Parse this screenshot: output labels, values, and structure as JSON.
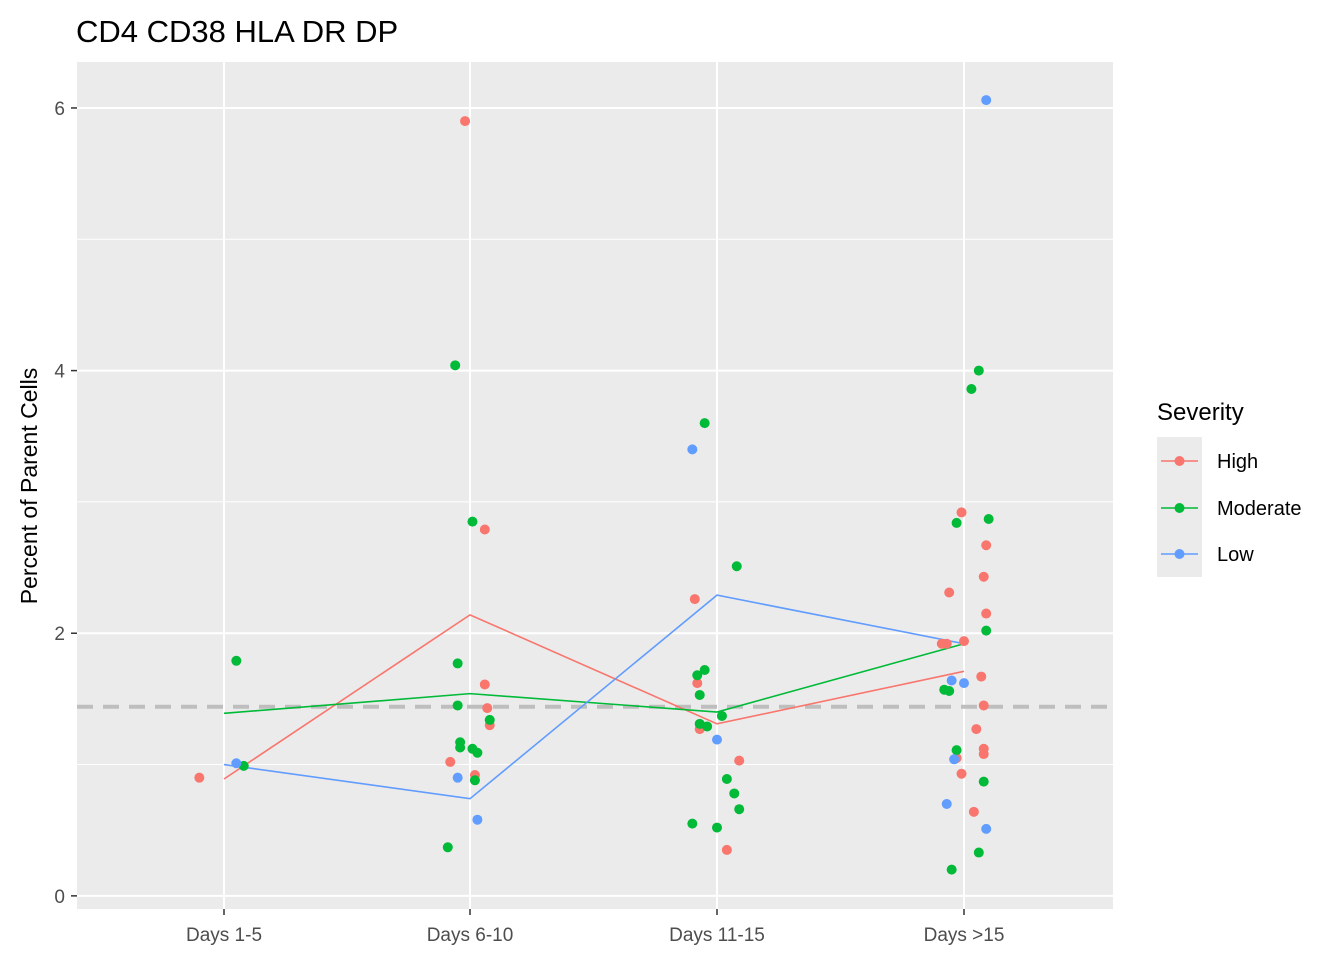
{
  "chart_data": {
    "type": "scatter",
    "title": "CD4 CD38 HLA DR DP",
    "xlabel": "",
    "ylabel": "Percent of Parent Cells",
    "categories": [
      "Days 1-5",
      "Days 6-10",
      "Days 11-15",
      "Days >15"
    ],
    "ylim": [
      -0.1,
      6.35
    ],
    "yticks": [
      0,
      2,
      4,
      6
    ],
    "grid": true,
    "reference_line": {
      "y": 1.44,
      "style": "dashed",
      "color": "#bebebe"
    },
    "legend": {
      "title": "Severity",
      "position": "right"
    },
    "series": [
      {
        "name": "High",
        "color": "#F8766D",
        "mean_line": [
          0.89,
          2.14,
          1.31,
          1.71
        ],
        "points": [
          {
            "x": "Days 1-5",
            "offset": -0.1,
            "y": 0.9
          },
          {
            "x": "Days 6-10",
            "offset": -0.02,
            "y": 5.9
          },
          {
            "x": "Days 6-10",
            "offset": 0.06,
            "y": 2.79
          },
          {
            "x": "Days 6-10",
            "offset": 0.06,
            "y": 1.61
          },
          {
            "x": "Days 6-10",
            "offset": 0.07,
            "y": 1.43
          },
          {
            "x": "Days 6-10",
            "offset": 0.08,
            "y": 1.3
          },
          {
            "x": "Days 6-10",
            "offset": -0.08,
            "y": 1.02
          },
          {
            "x": "Days 6-10",
            "offset": 0.02,
            "y": 0.92
          },
          {
            "x": "Days 11-15",
            "offset": -0.09,
            "y": 2.26
          },
          {
            "x": "Days 11-15",
            "offset": -0.08,
            "y": 1.62
          },
          {
            "x": "Days 11-15",
            "offset": -0.07,
            "y": 1.27
          },
          {
            "x": "Days 11-15",
            "offset": 0.09,
            "y": 1.03
          },
          {
            "x": "Days 11-15",
            "offset": 0.04,
            "y": 0.35
          },
          {
            "x": "Days >15",
            "offset": -0.01,
            "y": 2.92
          },
          {
            "x": "Days >15",
            "offset": -0.06,
            "y": 2.31
          },
          {
            "x": "Days >15",
            "offset": 0.09,
            "y": 2.67
          },
          {
            "x": "Days >15",
            "offset": 0.08,
            "y": 2.43
          },
          {
            "x": "Days >15",
            "offset": 0.09,
            "y": 2.15
          },
          {
            "x": "Days >15",
            "offset": -0.09,
            "y": 1.92
          },
          {
            "x": "Days >15",
            "offset": -0.07,
            "y": 1.92
          },
          {
            "x": "Days >15",
            "offset": 0.0,
            "y": 1.94
          },
          {
            "x": "Days >15",
            "offset": 0.07,
            "y": 1.67
          },
          {
            "x": "Days >15",
            "offset": 0.08,
            "y": 1.45
          },
          {
            "x": "Days >15",
            "offset": 0.05,
            "y": 1.27
          },
          {
            "x": "Days >15",
            "offset": 0.08,
            "y": 1.12
          },
          {
            "x": "Days >15",
            "offset": 0.08,
            "y": 1.08
          },
          {
            "x": "Days >15",
            "offset": -0.03,
            "y": 1.05
          },
          {
            "x": "Days >15",
            "offset": -0.01,
            "y": 0.93
          },
          {
            "x": "Days >15",
            "offset": 0.04,
            "y": 0.64
          }
        ]
      },
      {
        "name": "Moderate",
        "color": "#00BA38",
        "mean_line": [
          1.39,
          1.54,
          1.4,
          1.92
        ],
        "points": [
          {
            "x": "Days 1-5",
            "offset": 0.05,
            "y": 1.79
          },
          {
            "x": "Days 1-5",
            "offset": 0.08,
            "y": 0.99
          },
          {
            "x": "Days 6-10",
            "offset": -0.06,
            "y": 4.04
          },
          {
            "x": "Days 6-10",
            "offset": 0.01,
            "y": 2.85
          },
          {
            "x": "Days 6-10",
            "offset": -0.05,
            "y": 1.77
          },
          {
            "x": "Days 6-10",
            "offset": -0.05,
            "y": 1.45
          },
          {
            "x": "Days 6-10",
            "offset": 0.08,
            "y": 1.34
          },
          {
            "x": "Days 6-10",
            "offset": -0.04,
            "y": 1.17
          },
          {
            "x": "Days 6-10",
            "offset": -0.04,
            "y": 1.13
          },
          {
            "x": "Days 6-10",
            "offset": 0.01,
            "y": 1.12
          },
          {
            "x": "Days 6-10",
            "offset": 0.03,
            "y": 1.09
          },
          {
            "x": "Days 6-10",
            "offset": 0.02,
            "y": 0.88
          },
          {
            "x": "Days 6-10",
            "offset": -0.09,
            "y": 0.37
          },
          {
            "x": "Days 11-15",
            "offset": -0.05,
            "y": 3.6
          },
          {
            "x": "Days 11-15",
            "offset": 0.08,
            "y": 2.51
          },
          {
            "x": "Days 11-15",
            "offset": -0.08,
            "y": 1.68
          },
          {
            "x": "Days 11-15",
            "offset": -0.05,
            "y": 1.72
          },
          {
            "x": "Days 11-15",
            "offset": -0.07,
            "y": 1.53
          },
          {
            "x": "Days 11-15",
            "offset": 0.02,
            "y": 1.37
          },
          {
            "x": "Days 11-15",
            "offset": -0.07,
            "y": 1.31
          },
          {
            "x": "Days 11-15",
            "offset": -0.04,
            "y": 1.29
          },
          {
            "x": "Days 11-15",
            "offset": 0.04,
            "y": 0.89
          },
          {
            "x": "Days 11-15",
            "offset": 0.07,
            "y": 0.78
          },
          {
            "x": "Days 11-15",
            "offset": 0.09,
            "y": 0.66
          },
          {
            "x": "Days 11-15",
            "offset": -0.1,
            "y": 0.55
          },
          {
            "x": "Days 11-15",
            "offset": 0.0,
            "y": 0.52
          },
          {
            "x": "Days >15",
            "offset": 0.06,
            "y": 4.0
          },
          {
            "x": "Days >15",
            "offset": 0.03,
            "y": 3.86
          },
          {
            "x": "Days >15",
            "offset": 0.1,
            "y": 2.87
          },
          {
            "x": "Days >15",
            "offset": -0.03,
            "y": 2.84
          },
          {
            "x": "Days >15",
            "offset": 0.09,
            "y": 2.02
          },
          {
            "x": "Days >15",
            "offset": -0.08,
            "y": 1.57
          },
          {
            "x": "Days >15",
            "offset": -0.06,
            "y": 1.56
          },
          {
            "x": "Days >15",
            "offset": -0.03,
            "y": 1.11
          },
          {
            "x": "Days >15",
            "offset": 0.08,
            "y": 0.87
          },
          {
            "x": "Days >15",
            "offset": 0.06,
            "y": 0.33
          },
          {
            "x": "Days >15",
            "offset": -0.05,
            "y": 0.2
          }
        ]
      },
      {
        "name": "Low",
        "color": "#619CFF",
        "mean_line": [
          1.0,
          0.74,
          2.29,
          1.92
        ],
        "points": [
          {
            "x": "Days 1-5",
            "offset": 0.05,
            "y": 1.01
          },
          {
            "x": "Days 6-10",
            "offset": -0.05,
            "y": 0.9
          },
          {
            "x": "Days 6-10",
            "offset": 0.03,
            "y": 0.58
          },
          {
            "x": "Days 11-15",
            "offset": -0.1,
            "y": 3.4
          },
          {
            "x": "Days 11-15",
            "offset": 0.0,
            "y": 1.19
          },
          {
            "x": "Days >15",
            "offset": 0.09,
            "y": 6.06
          },
          {
            "x": "Days >15",
            "offset": -0.05,
            "y": 1.64
          },
          {
            "x": "Days >15",
            "offset": 0.0,
            "y": 1.62
          },
          {
            "x": "Days >15",
            "offset": -0.04,
            "y": 1.04
          },
          {
            "x": "Days >15",
            "offset": -0.07,
            "y": 0.7
          },
          {
            "x": "Days >15",
            "offset": 0.09,
            "y": 0.51
          }
        ]
      }
    ]
  }
}
